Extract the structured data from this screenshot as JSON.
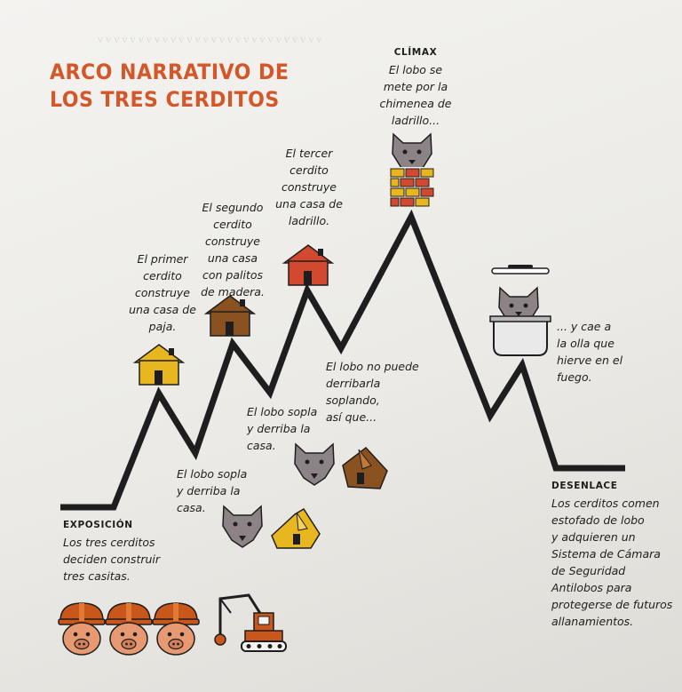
{
  "title": {
    "line1": "ARCO NARRATIVO DE",
    "line2": "LOS TRES CERDITOS"
  },
  "stages": {
    "exposicion": {
      "heading": "EXPOSICIÓN",
      "text": [
        "Los tres cerditos",
        "deciden construir",
        "tres casitas."
      ]
    },
    "primer": {
      "text": [
        "El primer",
        "cerdito",
        "construye",
        "una casa de",
        "paja."
      ]
    },
    "sopla1": {
      "text": [
        "El lobo sopla",
        "y derriba la",
        "casa."
      ]
    },
    "segundo": {
      "text": [
        "El segundo",
        "cerdito",
        "construye",
        "una casa",
        "con palitos",
        "de madera."
      ]
    },
    "sopla2": {
      "text": [
        "El lobo sopla",
        "y derriba la",
        "casa."
      ]
    },
    "tercer": {
      "text": [
        "El tercer",
        "cerdito",
        "construye",
        "una casa de",
        "ladrillo."
      ]
    },
    "nopuede": {
      "text": [
        "El lobo no puede",
        "derribarla",
        "soplando,",
        "así que..."
      ]
    },
    "climax": {
      "heading": "CLÍMAX",
      "text": [
        "El lobo se",
        "mete por la",
        "chimenea de",
        "ladrillo..."
      ]
    },
    "olla": {
      "text": [
        "... y cae a",
        "la olla que",
        "hierve en el",
        "fuego."
      ]
    },
    "desenlace": {
      "heading": "DESENLACE",
      "text": [
        "Los cerditos comen",
        "estofado de lobo",
        "y adquieren un",
        "Sistema de Cámara",
        "de Seguridad",
        "Antilobos para",
        "protegerse de futuros",
        "allanamientos."
      ]
    }
  },
  "colors": {
    "title": "#d4572a",
    "arc": "#1e1e1e",
    "straw": "#e8b71f",
    "wood": "#8a5220",
    "brick": "#d2492f",
    "wolf": "#8c8387",
    "pig": "#e79a72",
    "helmet": "#c9561b"
  },
  "icons": [
    "straw-house-icon",
    "wood-house-icon",
    "brick-house-icon",
    "wolf-icon",
    "brick-chimney-icon",
    "cooking-pot-icon",
    "pig-worker-icon",
    "excavator-icon",
    "collapsed-house-icon"
  ]
}
